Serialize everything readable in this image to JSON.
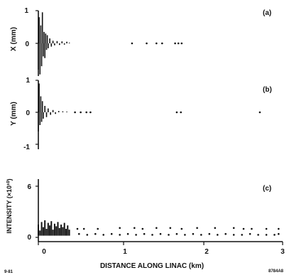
{
  "chart_data": [
    {
      "type": "line",
      "panel_label": "(a)",
      "ylabel": "X (mm)",
      "ylim": [
        -1,
        1
      ],
      "yticks": [
        1,
        0
      ],
      "xlim": [
        0,
        3
      ],
      "series": [
        {
          "points": [
            [
              0.0,
              -1.0
            ],
            [
              0.01,
              0.8
            ],
            [
              0.02,
              -0.95
            ],
            [
              0.03,
              0.55
            ],
            [
              0.04,
              -0.7
            ],
            [
              0.05,
              0.95
            ],
            [
              0.06,
              -0.4
            ],
            [
              0.07,
              0.35
            ],
            [
              0.08,
              -0.45
            ],
            [
              0.09,
              0.3
            ],
            [
              0.1,
              -0.2
            ],
            [
              0.11,
              0.25
            ],
            [
              0.12,
              -0.15
            ],
            [
              0.14,
              0.15
            ],
            [
              0.16,
              -0.1
            ],
            [
              0.18,
              0.08
            ],
            [
              0.2,
              -0.06
            ],
            [
              0.23,
              0.07
            ],
            [
              0.26,
              -0.05
            ],
            [
              0.29,
              0.06
            ],
            [
              0.32,
              -0.04
            ],
            [
              0.35,
              0.05
            ],
            [
              0.38,
              0.02
            ]
          ]
        },
        {
          "points": [
            [
              1.15,
              0.0
            ],
            [
              1.33,
              0.0
            ],
            [
              1.45,
              0.0
            ],
            [
              1.52,
              0.0
            ],
            [
              1.68,
              0.0
            ],
            [
              1.72,
              0.0
            ],
            [
              1.76,
              0.0
            ]
          ]
        }
      ]
    },
    {
      "type": "line",
      "panel_label": "(b)",
      "ylabel": "Y (mm)",
      "ylim": [
        -1,
        1
      ],
      "yticks": [
        1,
        0,
        -1
      ],
      "xlim": [
        0,
        3
      ],
      "series": [
        {
          "points": [
            [
              0.0,
              -0.6
            ],
            [
              0.01,
              0.9
            ],
            [
              0.02,
              -0.4
            ],
            [
              0.03,
              0.5
            ],
            [
              0.04,
              -0.3
            ],
            [
              0.05,
              0.35
            ],
            [
              0.06,
              -0.2
            ],
            [
              0.08,
              0.2
            ],
            [
              0.1,
              -0.15
            ],
            [
              0.12,
              0.12
            ],
            [
              0.15,
              -0.08
            ],
            [
              0.18,
              0.07
            ],
            [
              0.21,
              -0.05
            ],
            [
              0.25,
              0.04
            ],
            [
              0.3,
              0.03
            ],
            [
              0.35,
              0.02
            ],
            [
              0.38,
              0.0
            ]
          ]
        },
        {
          "points": [
            [
              0.45,
              0.0
            ],
            [
              0.52,
              0.0
            ],
            [
              0.59,
              0.0
            ],
            [
              0.64,
              0.0
            ],
            [
              1.7,
              0.0
            ],
            [
              1.75,
              0.0
            ],
            [
              2.72,
              0.0
            ]
          ]
        }
      ]
    },
    {
      "type": "scatter",
      "panel_label": "(c)",
      "ylabel": "INTENSITY (×10¹⁰)",
      "ylim": [
        0,
        6
      ],
      "yticks": [
        6,
        0
      ],
      "xlim": [
        0,
        3
      ],
      "xticks": [
        0,
        1,
        2,
        3
      ],
      "xlabel": "DISTANCE ALONG LINAC (km)",
      "series": [
        {
          "points": [
            [
              0.0,
              1.5
            ],
            [
              0.02,
              0.8
            ],
            [
              0.04,
              1.8
            ],
            [
              0.06,
              1.2
            ],
            [
              0.08,
              2.0
            ],
            [
              0.1,
              1.0
            ],
            [
              0.12,
              1.7
            ],
            [
              0.14,
              1.4
            ],
            [
              0.16,
              1.9
            ],
            [
              0.18,
              0.9
            ],
            [
              0.2,
              1.6
            ],
            [
              0.22,
              1.3
            ],
            [
              0.24,
              1.8
            ],
            [
              0.26,
              1.1
            ],
            [
              0.28,
              1.5
            ],
            [
              0.3,
              1.2
            ],
            [
              0.32,
              1.7
            ],
            [
              0.34,
              1.0
            ],
            [
              0.36,
              1.4
            ],
            [
              0.38,
              0.9
            ]
          ]
        },
        {
          "points": [
            [
              0.5,
              0.4
            ],
            [
              0.6,
              0.3
            ],
            [
              0.7,
              0.4
            ],
            [
              0.8,
              0.3
            ],
            [
              0.9,
              0.4
            ],
            [
              1.0,
              0.3
            ],
            [
              1.1,
              0.4
            ],
            [
              1.2,
              0.3
            ],
            [
              1.3,
              0.4
            ],
            [
              1.4,
              0.3
            ],
            [
              1.5,
              0.4
            ],
            [
              1.6,
              0.3
            ],
            [
              1.7,
              0.4
            ],
            [
              1.8,
              0.3
            ],
            [
              1.9,
              0.4
            ],
            [
              2.0,
              0.3
            ],
            [
              2.1,
              0.4
            ],
            [
              2.2,
              0.3
            ],
            [
              2.3,
              0.4
            ],
            [
              2.4,
              0.3
            ],
            [
              2.5,
              0.3
            ],
            [
              2.6,
              0.4
            ],
            [
              2.7,
              0.3
            ],
            [
              2.8,
              0.3
            ],
            [
              2.9,
              0.3
            ],
            [
              2.95,
              0.4
            ]
          ]
        },
        {
          "points": [
            [
              0.48,
              1.0
            ],
            [
              0.56,
              1.0
            ],
            [
              0.73,
              1.0
            ],
            [
              1.0,
              1.1
            ],
            [
              1.18,
              1.1
            ],
            [
              1.28,
              1.0
            ],
            [
              1.45,
              1.1
            ],
            [
              1.62,
              1.1
            ],
            [
              1.76,
              1.0
            ],
            [
              1.95,
              1.1
            ],
            [
              2.17,
              1.1
            ],
            [
              2.4,
              1.1
            ],
            [
              2.52,
              1.0
            ],
            [
              2.62,
              1.0
            ],
            [
              2.8,
              1.0
            ],
            [
              2.95,
              1.0
            ]
          ]
        }
      ]
    }
  ],
  "figure_marks": {
    "left_id": "9-81",
    "right_id": "8784A8"
  },
  "colors": {
    "ink": "#111111",
    "background": "#ffffff"
  }
}
